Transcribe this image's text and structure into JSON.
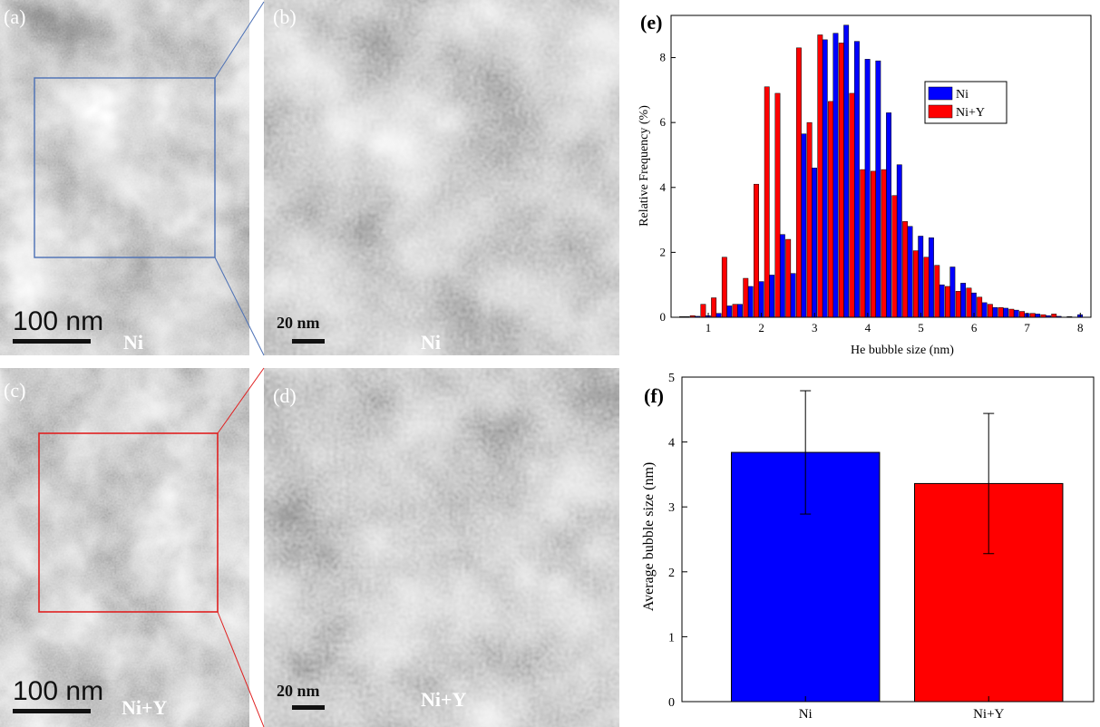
{
  "panels": {
    "a": {
      "label": "(a)",
      "material": "Ni",
      "scale": "100 nm"
    },
    "b": {
      "label": "(b)",
      "material": "Ni",
      "scale": "20 nm"
    },
    "c": {
      "label": "(c)",
      "material": "",
      "scale": "100 nm"
    },
    "d": {
      "label": "(d)",
      "material": "Ni+Y",
      "scale": "20 nm"
    },
    "c_material": "Ni+Y",
    "roi_colors": {
      "a": "#4a6fb5",
      "c": "#e02020"
    }
  },
  "chart_data": [
    {
      "panel": "(e)",
      "type": "bar",
      "xlabel": "He bubble size (nm)",
      "ylabel": "Relative Frequency (%)",
      "xlim": [
        0.3,
        8.2
      ],
      "ylim": [
        0,
        9.3
      ],
      "xticks": [
        1,
        2,
        3,
        4,
        5,
        6,
        7,
        8
      ],
      "yticks": [
        0,
        2,
        4,
        6,
        8
      ],
      "legend_position": "top-right",
      "series": [
        {
          "name": "Ni",
          "color": "#0000ff",
          "x": [
            0.55,
            0.75,
            0.95,
            1.15,
            1.35,
            1.55,
            1.75,
            1.95,
            2.15,
            2.35,
            2.55,
            2.75,
            2.95,
            3.15,
            3.35,
            3.55,
            3.75,
            3.95,
            4.15,
            4.35,
            4.55,
            4.75,
            4.95,
            5.15,
            5.35,
            5.55,
            5.75,
            5.95,
            6.15,
            6.35,
            6.55,
            6.75,
            6.95,
            7.15,
            7.35,
            7.55,
            7.75,
            7.95
          ],
          "values": [
            0.02,
            0.03,
            0.05,
            0.12,
            0.35,
            0.4,
            0.95,
            1.1,
            1.3,
            2.55,
            1.35,
            5.65,
            4.6,
            8.55,
            8.75,
            9.0,
            8.5,
            7.95,
            7.9,
            6.3,
            4.7,
            2.8,
            2.5,
            2.45,
            1.0,
            1.55,
            1.05,
            0.75,
            0.45,
            0.3,
            0.28,
            0.22,
            0.12,
            0.1,
            0.05,
            0.03,
            0.02,
            0.08
          ]
        },
        {
          "name": "Ni+Y",
          "color": "#ff0000",
          "x": [
            0.55,
            0.75,
            0.95,
            1.15,
            1.35,
            1.55,
            1.75,
            1.95,
            2.15,
            2.35,
            2.55,
            2.75,
            2.95,
            3.15,
            3.35,
            3.55,
            3.75,
            3.95,
            4.15,
            4.35,
            4.55,
            4.75,
            4.95,
            5.15,
            5.35,
            5.55,
            5.75,
            5.95,
            6.15,
            6.35,
            6.55,
            6.75,
            6.95,
            7.15,
            7.35,
            7.55
          ],
          "values": [
            0.02,
            0.05,
            0.4,
            0.6,
            1.85,
            0.4,
            1.2,
            4.1,
            7.1,
            6.9,
            2.4,
            8.3,
            6.0,
            8.7,
            6.65,
            8.45,
            6.9,
            4.55,
            4.5,
            4.55,
            3.75,
            2.95,
            2.05,
            1.85,
            1.6,
            0.95,
            0.8,
            0.9,
            0.62,
            0.4,
            0.3,
            0.25,
            0.18,
            0.12,
            0.08,
            0.1
          ]
        }
      ]
    },
    {
      "panel": "(f)",
      "type": "bar",
      "categories": [
        "Ni",
        "Ni+Y"
      ],
      "values": [
        3.84,
        3.36
      ],
      "errors": [
        0.95,
        1.08
      ],
      "colors": [
        "#0000ff",
        "#ff0000"
      ],
      "ylabel": "Average bubble size (nm)",
      "ylim": [
        0,
        5
      ],
      "yticks": [
        0,
        1,
        2,
        3,
        4,
        5
      ]
    }
  ]
}
